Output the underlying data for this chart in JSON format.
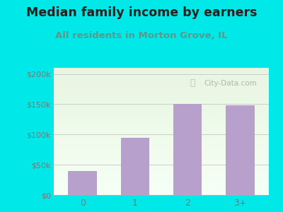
{
  "title": "Median family income by earners",
  "subtitle": "All residents in Morton Grove, IL",
  "categories": [
    "0",
    "1",
    "2",
    "3+"
  ],
  "values": [
    40000,
    95000,
    150000,
    148000
  ],
  "bar_color": "#b8a0cc",
  "title_fontsize": 12.5,
  "subtitle_fontsize": 9.5,
  "subtitle_color": "#5a9a8a",
  "title_color": "#222222",
  "outer_bg": "#00e8e8",
  "plot_bg_top": "#e8f5e0",
  "plot_bg_bottom": "#f5fff5",
  "yticks": [
    0,
    50000,
    100000,
    150000,
    200000
  ],
  "ytick_labels": [
    "$0",
    "$50k",
    "$100k",
    "$150k",
    "$200k"
  ],
  "ylim": [
    0,
    210000
  ],
  "watermark": "City-Data.com",
  "tick_color": "#777777",
  "grid_color": "#cccccc",
  "watermark_color": "#aaaaaa"
}
